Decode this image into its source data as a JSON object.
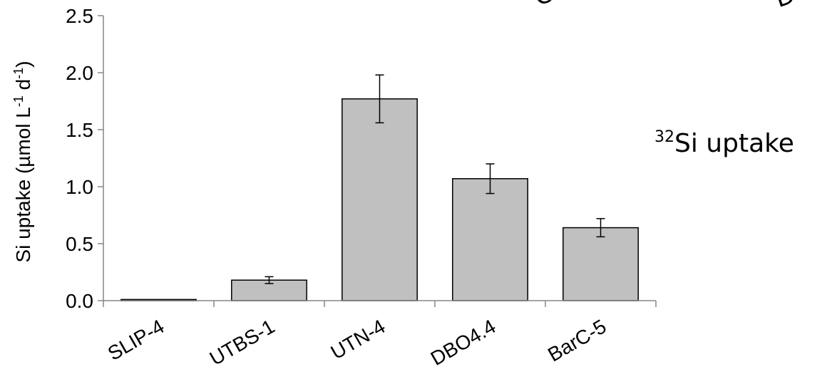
{
  "chart_data": {
    "type": "bar",
    "categories": [
      "SLIP-4",
      "UTBS-1",
      "UTN-4",
      "DBO4.4",
      "BarC-5"
    ],
    "values": [
      0.01,
      0.18,
      1.77,
      1.07,
      0.64
    ],
    "errors": [
      0.0,
      0.03,
      0.21,
      0.13,
      0.08
    ],
    "ylabel": {
      "main": "Si uptake (µmol L",
      "sup1": "-1",
      "mid": " d",
      "sup2": "-1",
      "end": ")"
    },
    "ylim": [
      0,
      2.5
    ],
    "yticks": [
      "0.0",
      "0.5",
      "1.0",
      "1.5",
      "2.0",
      "2.5"
    ],
    "grid": false,
    "bar_color": "#c0c0c0",
    "bar_edge_color": "#000000"
  },
  "annotation": {
    "superscript": "32",
    "text": "Si uptake"
  },
  "clipped_labels": [
    "C",
    "D"
  ]
}
